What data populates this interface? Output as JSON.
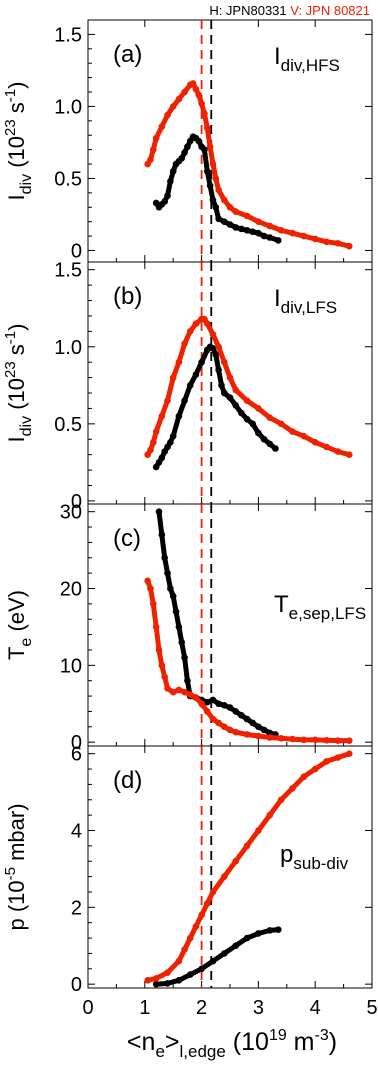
{
  "legend": {
    "black_label": "H: JPN80331",
    "red_label": "V: JPN 80821",
    "black_color": "#000000",
    "red_color": "#ee2200"
  },
  "chart_data": {
    "type": "scatter",
    "grid": false,
    "vlines": [
      {
        "x": 2.0,
        "color": "#ee2200",
        "style": "dashed"
      },
      {
        "x": 2.17,
        "color": "#000000",
        "style": "dashed"
      }
    ],
    "shared_x": {
      "xlabel_main": "<n",
      "xlabel_sub1": "e",
      "xlabel_mid": ">",
      "xlabel_sub2": "l,edge",
      "xlabel_units": "(10",
      "xlabel_exp": "19",
      "xlabel_units2": "m",
      "xlabel_exp2": "-3",
      "xlabel_close": ")",
      "xlim": [
        0,
        5
      ],
      "ticks": [
        "0",
        "1",
        "2",
        "3",
        "4",
        "5"
      ]
    },
    "panels": [
      {
        "id": "a",
        "tag": "(a)",
        "annot_main": "I",
        "annot_sub": "div,HFS",
        "ylabel": [
          "I",
          "div",
          " (10",
          "23",
          " s",
          "-1",
          ")"
        ],
        "ylim": [
          -0.08,
          1.6
        ],
        "yticks": [
          "0",
          "0.5",
          "1.0",
          "1.5"
        ],
        "series": [
          {
            "color_key": "black",
            "x": [
              1.2,
              1.25,
              1.3,
              1.35,
              1.4,
              1.45,
              1.5,
              1.55,
              1.6,
              1.65,
              1.7,
              1.75,
              1.8,
              1.85,
              1.9,
              1.95,
              2.0,
              2.05,
              2.1,
              2.15,
              2.2,
              2.25,
              2.3,
              2.4,
              2.5,
              2.6,
              2.7,
              2.8,
              2.9,
              3.0,
              3.1,
              3.2,
              3.35
            ],
            "y": [
              0.33,
              0.3,
              0.32,
              0.34,
              0.38,
              0.48,
              0.55,
              0.6,
              0.62,
              0.64,
              0.68,
              0.72,
              0.76,
              0.79,
              0.78,
              0.76,
              0.72,
              0.7,
              0.55,
              0.45,
              0.35,
              0.3,
              0.22,
              0.2,
              0.18,
              0.16,
              0.15,
              0.14,
              0.13,
              0.12,
              0.1,
              0.09,
              0.07
            ]
          },
          {
            "color_key": "red",
            "x": [
              1.05,
              1.1,
              1.15,
              1.2,
              1.3,
              1.4,
              1.5,
              1.6,
              1.7,
              1.8,
              1.85,
              1.9,
              1.95,
              2.0,
              2.05,
              2.1,
              2.15,
              2.2,
              2.25,
              2.3,
              2.4,
              2.5,
              2.6,
              2.8,
              3.0,
              3.2,
              3.4,
              3.6,
              3.8,
              4.0,
              4.2,
              4.4,
              4.6
            ],
            "y": [
              0.6,
              0.63,
              0.7,
              0.78,
              0.86,
              0.94,
              1.0,
              1.05,
              1.1,
              1.15,
              1.16,
              1.12,
              1.08,
              1.02,
              0.95,
              0.85,
              0.72,
              0.6,
              0.5,
              0.42,
              0.35,
              0.3,
              0.27,
              0.24,
              0.2,
              0.17,
              0.14,
              0.12,
              0.1,
              0.08,
              0.06,
              0.05,
              0.03
            ]
          }
        ]
      },
      {
        "id": "b",
        "tag": "(b)",
        "annot_main": "I",
        "annot_sub": "div,LFS",
        "ylabel": [
          "I",
          "div",
          " (10",
          "23",
          " s",
          "-1",
          ")"
        ],
        "ylim": [
          -0.02,
          1.55
        ],
        "yticks": [
          "0",
          "0.5",
          "1.0",
          "1.5"
        ],
        "series": [
          {
            "color_key": "black",
            "x": [
              1.2,
              1.25,
              1.3,
              1.35,
              1.4,
              1.45,
              1.5,
              1.6,
              1.7,
              1.8,
              1.9,
              2.0,
              2.1,
              2.15,
              2.2,
              2.25,
              2.3,
              2.35,
              2.4,
              2.5,
              2.6,
              2.7,
              2.8,
              2.9,
              3.0,
              3.1,
              3.2,
              3.3
            ],
            "y": [
              0.22,
              0.25,
              0.28,
              0.32,
              0.35,
              0.38,
              0.42,
              0.55,
              0.65,
              0.75,
              0.82,
              0.9,
              0.98,
              1.0,
              0.99,
              0.95,
              0.85,
              0.75,
              0.7,
              0.67,
              0.62,
              0.57,
              0.53,
              0.5,
              0.44,
              0.4,
              0.37,
              0.34
            ]
          },
          {
            "color_key": "red",
            "x": [
              1.05,
              1.1,
              1.15,
              1.2,
              1.3,
              1.4,
              1.5,
              1.6,
              1.7,
              1.8,
              1.9,
              2.0,
              2.05,
              2.1,
              2.2,
              2.3,
              2.4,
              2.5,
              2.6,
              2.8,
              3.0,
              3.2,
              3.4,
              3.6,
              3.8,
              4.0,
              4.2,
              4.4,
              4.6
            ],
            "y": [
              0.3,
              0.33,
              0.38,
              0.45,
              0.55,
              0.65,
              0.8,
              0.9,
              1.02,
              1.1,
              1.15,
              1.18,
              1.18,
              1.15,
              1.08,
              1.0,
              0.9,
              0.8,
              0.72,
              0.65,
              0.6,
              0.54,
              0.5,
              0.45,
              0.42,
              0.38,
              0.35,
              0.32,
              0.3
            ]
          }
        ]
      },
      {
        "id": "c",
        "tag": "(c)",
        "annot_main": "T",
        "annot_sub": "e,sep,LFS",
        "ylabel": [
          "T",
          "e",
          " (eV)",
          "",
          "",
          "",
          ""
        ],
        "ylim": [
          -0.5,
          31
        ],
        "yticks": [
          "0",
          "10",
          "20",
          "30"
        ],
        "series": [
          {
            "color_key": "black",
            "x": [
              1.25,
              1.3,
              1.35,
              1.4,
              1.45,
              1.5,
              1.55,
              1.6,
              1.65,
              1.7,
              1.75,
              1.8,
              1.9,
              2.0,
              2.1,
              2.2,
              2.3,
              2.4,
              2.5,
              2.6,
              2.7,
              2.8,
              2.9,
              3.0,
              3.1,
              3.2,
              3.3
            ],
            "y": [
              30,
              27,
              24,
              22,
              20,
              19,
              17,
              15,
              13,
              11,
              8,
              6,
              5.8,
              5.5,
              5.2,
              5.5,
              5.0,
              4.8,
              4.5,
              4.0,
              3.5,
              3.0,
              2.5,
              2.0,
              1.6,
              1.2,
              1.0
            ]
          },
          {
            "color_key": "red",
            "x": [
              1.05,
              1.1,
              1.15,
              1.2,
              1.25,
              1.3,
              1.35,
              1.4,
              1.5,
              1.6,
              1.7,
              1.8,
              1.9,
              2.0,
              2.1,
              2.2,
              2.3,
              2.4,
              2.5,
              2.6,
              2.8,
              3.0,
              3.2,
              3.4,
              3.6,
              3.8,
              4.0,
              4.2,
              4.4,
              4.6
            ],
            "y": [
              21,
              20,
              18,
              15,
              12,
              10,
              8.5,
              7,
              6.5,
              6.8,
              6.5,
              6.2,
              5.8,
              5.0,
              4.0,
              3.0,
              2.5,
              2.0,
              1.6,
              1.3,
              1.0,
              0.8,
              0.6,
              0.5,
              0.4,
              0.3,
              0.3,
              0.25,
              0.2,
              0.2
            ]
          }
        ]
      },
      {
        "id": "d",
        "tag": "(d)",
        "annot_main": "p",
        "annot_sub": "sub-div",
        "ylabel": [
          "p (10",
          "-5",
          " mbar)",
          "",
          "",
          "",
          ""
        ],
        "ylim": [
          -0.1,
          6.2
        ],
        "yticks": [
          "0",
          "2",
          "4",
          "6"
        ],
        "series": [
          {
            "color_key": "black",
            "x": [
              1.2,
              1.4,
              1.6,
              1.8,
              2.0,
              2.2,
              2.4,
              2.6,
              2.8,
              3.0,
              3.2,
              3.35
            ],
            "y": [
              0.0,
              0.02,
              0.1,
              0.25,
              0.4,
              0.6,
              0.8,
              1.0,
              1.2,
              1.32,
              1.4,
              1.42
            ]
          },
          {
            "color_key": "red",
            "x": [
              1.05,
              1.2,
              1.4,
              1.6,
              1.7,
              1.8,
              1.9,
              2.0,
              2.1,
              2.2,
              2.4,
              2.6,
              2.8,
              3.0,
              3.2,
              3.4,
              3.6,
              3.8,
              4.0,
              4.2,
              4.4,
              4.6
            ],
            "y": [
              0.1,
              0.15,
              0.3,
              0.6,
              0.9,
              1.2,
              1.5,
              1.8,
              2.1,
              2.4,
              2.8,
              3.2,
              3.6,
              4.0,
              4.4,
              4.8,
              5.1,
              5.4,
              5.6,
              5.8,
              5.9,
              6.0
            ]
          }
        ]
      }
    ]
  }
}
